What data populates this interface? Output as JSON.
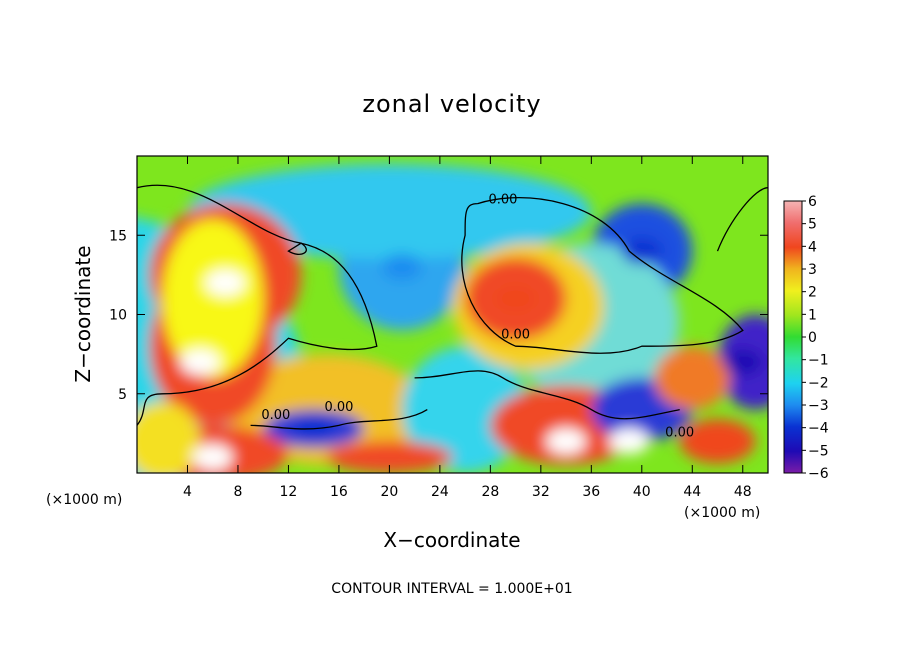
{
  "chart_data": {
    "type": "heatmap",
    "title": "zonal velocity",
    "xlabel": "X−coordinate",
    "ylabel": "Z−coordinate",
    "x_unit_label": "(×1000 m)",
    "x_unit_label_right": "(×1000 m)",
    "footer": "CONTOUR INTERVAL = 1.000E+01",
    "xlim": [
      0,
      50
    ],
    "ylim": [
      0,
      20
    ],
    "x_ticks": [
      "4",
      "8",
      "12",
      "16",
      "20",
      "24",
      "28",
      "32",
      "36",
      "40",
      "44",
      "48"
    ],
    "y_ticks": [
      "5",
      "10",
      "15"
    ],
    "colorbar": {
      "range": [
        -6,
        6
      ],
      "labels": [
        "6",
        "5",
        "4",
        "3",
        "2",
        "1",
        "0",
        "−1",
        "−2",
        "−3",
        "−4",
        "−5",
        "−6"
      ]
    },
    "contour_labels": [
      "0.00",
      "0.00",
      "0.00",
      "0.00",
      "0.00"
    ],
    "features": [
      {
        "x": 7,
        "z": 12,
        "value": 6
      },
      {
        "x": 5,
        "z": 7,
        "value": 6
      },
      {
        "x": 6,
        "z": 1,
        "value": 6
      },
      {
        "x": 30,
        "z": 11,
        "value": 4
      },
      {
        "x": 21,
        "z": 13,
        "value": -3
      },
      {
        "x": 40,
        "z": 14,
        "value": -4
      },
      {
        "x": 34,
        "z": 2,
        "value": 6
      },
      {
        "x": 39,
        "z": 2,
        "value": 6
      },
      {
        "x": 48,
        "z": 7,
        "value": -5
      },
      {
        "x": 14,
        "z": 3,
        "value": -4
      }
    ]
  }
}
